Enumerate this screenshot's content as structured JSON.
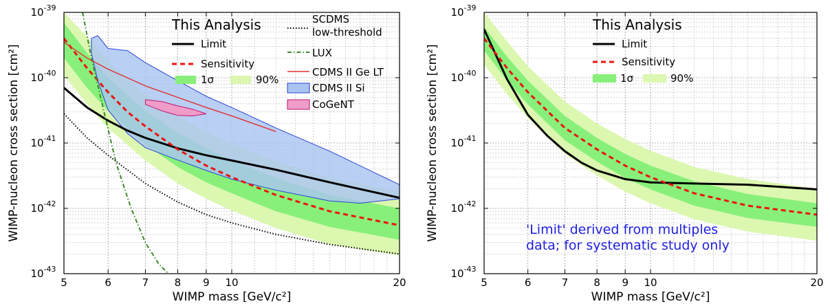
{
  "chart_data": [
    {
      "type": "line",
      "xscale": "log",
      "yscale": "log",
      "xlim": [
        5,
        20
      ],
      "ylim": [
        1e-43,
        1e-39
      ],
      "xlabel": "WIMP mass [GeV/c²]",
      "ylabel": "WIMP-nucleon cross section [cm²]",
      "grid": true,
      "x_ticks": [
        "5",
        "6",
        "7",
        "8",
        "9",
        "10",
        "20"
      ],
      "y_ticks": [
        {
          "base": "10",
          "exp": "-43"
        },
        {
          "base": "10",
          "exp": "-42"
        },
        {
          "base": "10",
          "exp": "-41"
        },
        {
          "base": "10",
          "exp": "-40"
        },
        {
          "base": "10",
          "exp": "-39"
        }
      ],
      "legend_title": "This Analysis",
      "legend": {
        "limit": "Limit",
        "sensitivity": "Sensitivity",
        "band1": "1σ",
        "band90": "90%",
        "scdms": "SCDMS\nlow-threshold",
        "lux": "LUX",
        "cdmsge": "CDMS II Ge LT",
        "cdmssi": "CDMS II Si",
        "cogent": "CoGeNT"
      },
      "colors": {
        "limit": "#000000",
        "sensitivity": "#ee1111",
        "band1": "#88f07a",
        "band90": "#dcf7b0",
        "scdms": "#000000",
        "lux": "#3a8a28",
        "cdmsge": "#e23030",
        "cdmssi_fill": "#a9c4f0",
        "cdmssi_edge": "#2a44d8",
        "cogent_fill": "#ef9cc9",
        "cogent_edge": "#c01870"
      },
      "series": [
        {
          "name": "Limit",
          "x": [
            5,
            5.5,
            6,
            6.5,
            7,
            8,
            9,
            10,
            12,
            15,
            20
          ],
          "y": [
            7e-41,
            3.5e-41,
            2.2e-41,
            1.55e-41,
            1.2e-41,
            8.3e-42,
            6.5e-42,
            5.4e-42,
            3.9e-42,
            2.5e-42,
            1.45e-42
          ]
        },
        {
          "name": "Sensitivity",
          "x": [
            5,
            5.5,
            6,
            6.5,
            7,
            8,
            9,
            10,
            12,
            15,
            20
          ],
          "y": [
            4e-40,
            1.4e-40,
            6e-41,
            3e-41,
            1.8e-41,
            8e-42,
            4.5e-42,
            3e-42,
            1.6e-42,
            9e-43,
            5.5e-43
          ]
        },
        {
          "name": "SCDMS low-threshold",
          "x": [
            5,
            5.5,
            6,
            7,
            8,
            9,
            10,
            12,
            15,
            20
          ],
          "y": [
            2.8e-41,
            1.2e-41,
            6.5e-42,
            2.4e-42,
            1.25e-42,
            8e-43,
            6e-43,
            4e-43,
            2.8e-43,
            2e-43
          ]
        },
        {
          "name": "LUX",
          "x": [
            5.4,
            5.6,
            5.9,
            6.2,
            6.6,
            7.0,
            7.4,
            7.7
          ],
          "y": [
            1e-39,
            2e-40,
            3e-41,
            5e-42,
            1e-42,
            3e-43,
            1.4e-43,
            1e-43
          ]
        },
        {
          "name": "CDMS II Ge LT",
          "x": [
            5,
            5.5,
            6,
            7,
            8,
            9,
            10,
            12
          ],
          "y": [
            3.5e-40,
            2e-40,
            1.35e-40,
            7.5e-41,
            5e-41,
            3.5e-41,
            2.6e-41,
            1.5e-41
          ]
        }
      ],
      "bands": [
        {
          "name": "1σ",
          "x": [
            5,
            5.5,
            6,
            7,
            8,
            9,
            10,
            12,
            15,
            20
          ],
          "lower": [
            2e-40,
            7e-41,
            3.1e-41,
            9.5e-42,
            4.3e-42,
            2.5e-42,
            1.7e-42,
            9e-43,
            5.2e-43,
            3.3e-43
          ],
          "upper": [
            7e-40,
            2.4e-40,
            1e-40,
            3.1e-41,
            1.45e-41,
            8.2e-42,
            5.5e-42,
            2.9e-42,
            1.6e-42,
            1e-42
          ]
        },
        {
          "name": "90%",
          "x": [
            5,
            5.5,
            6,
            7,
            8,
            9,
            10,
            12,
            15,
            20
          ],
          "lower": [
            1.1e-40,
            3.9e-41,
            1.7e-41,
            5.4e-42,
            2.4e-42,
            1.4e-42,
            9.3e-43,
            5e-43,
            2.8e-43,
            1.9e-43
          ],
          "upper": [
            1e-39,
            4.2e-40,
            1.8e-40,
            5.5e-41,
            2.6e-41,
            1.45e-41,
            9.8e-42,
            5.2e-42,
            2.9e-42,
            1.8e-42
          ]
        }
      ],
      "regions": [
        {
          "name": "CDMS II Si",
          "points": [
            [
              5.6,
              4e-40
            ],
            [
              5.75,
              4.4e-40
            ],
            [
              6,
              2.8e-40
            ],
            [
              6.5,
              2.6e-40
            ],
            [
              7,
              1.7e-40
            ],
            [
              8,
              9e-41
            ],
            [
              9,
              5.2e-41
            ],
            [
              10,
              3.5e-41
            ],
            [
              12,
              1.7e-41
            ],
            [
              15,
              7.5e-42
            ],
            [
              20,
              2.3e-42
            ],
            [
              20,
              1.4e-42
            ],
            [
              17,
              1.2e-42
            ],
            [
              15,
              1.3e-42
            ],
            [
              12,
              1.9e-42
            ],
            [
              10,
              2.8e-42
            ],
            [
              9,
              3.8e-42
            ],
            [
              8,
              5.5e-42
            ],
            [
              7,
              8.5e-42
            ],
            [
              6.5,
              1.4e-41
            ],
            [
              6,
              3.2e-41
            ],
            [
              5.75,
              9e-41
            ],
            [
              5.6,
              2.4e-40
            ]
          ]
        },
        {
          "name": "CoGeNT",
          "points": [
            [
              7.0,
              4.6e-41
            ],
            [
              7.5,
              4.3e-41
            ],
            [
              8.0,
              3.7e-41
            ],
            [
              8.5,
              3.3e-41
            ],
            [
              9.0,
              2.8e-41
            ],
            [
              8.5,
              2.6e-41
            ],
            [
              8.0,
              2.65e-41
            ],
            [
              7.5,
              3.1e-41
            ],
            [
              7.0,
              3.9e-41
            ]
          ]
        }
      ]
    },
    {
      "type": "line",
      "xscale": "log",
      "yscale": "log",
      "xlim": [
        5,
        20
      ],
      "ylim": [
        1e-43,
        1e-39
      ],
      "xlabel": "WIMP mass [GeV/c²]",
      "ylabel": "WIMP-nucleon cross section [cm²]",
      "grid": true,
      "x_ticks": [
        "5",
        "6",
        "7",
        "8",
        "9",
        "10",
        "20"
      ],
      "y_ticks": [
        {
          "base": "10",
          "exp": "-43"
        },
        {
          "base": "10",
          "exp": "-42"
        },
        {
          "base": "10",
          "exp": "-41"
        },
        {
          "base": "10",
          "exp": "-40"
        },
        {
          "base": "10",
          "exp": "-39"
        }
      ],
      "legend_title": "This Analysis",
      "legend": {
        "limit": "Limit",
        "sensitivity": "Sensitivity",
        "band1": "1σ",
        "band90": "90%"
      },
      "annotation": "'Limit' derived from multiples\ndata; for systematic study only",
      "series": [
        {
          "name": "Limit",
          "x": [
            5,
            5.5,
            6,
            6.5,
            7,
            7.5,
            8,
            9,
            10,
            12,
            15,
            20
          ],
          "y": [
            5.5e-40,
            9.5e-41,
            2.7e-41,
            1.3e-41,
            7.5e-42,
            5e-42,
            3.8e-42,
            2.8e-42,
            2.5e-42,
            2.4e-42,
            2.3e-42,
            1.95e-42
          ]
        },
        {
          "name": "Sensitivity",
          "x": [
            5,
            5.5,
            6,
            7,
            8,
            9,
            10,
            12,
            15,
            20
          ],
          "y": [
            4e-40,
            1.4e-40,
            6e-41,
            1.7e-41,
            8e-42,
            4.5e-42,
            3e-42,
            1.7e-42,
            1.1e-42,
            8e-43
          ]
        }
      ],
      "bands": [
        {
          "name": "1σ",
          "x": [
            5,
            5.5,
            6,
            7,
            8,
            9,
            10,
            12,
            15,
            20
          ],
          "lower": [
            2.6e-40,
            9e-41,
            3.9e-41,
            1.1e-41,
            5.2e-42,
            2.9e-42,
            1.95e-42,
            1.1e-42,
            7.1e-43,
            5.2e-43
          ],
          "upper": [
            6e-40,
            2.1e-40,
            9e-41,
            2.6e-41,
            1.2e-41,
            6.8e-42,
            4.5e-42,
            2.6e-42,
            1.65e-42,
            1.2e-42
          ]
        },
        {
          "name": "90%",
          "x": [
            5,
            5.5,
            6,
            7,
            8,
            9,
            10,
            12,
            15,
            20
          ],
          "lower": [
            1.6e-40,
            5.6e-41,
            2.4e-41,
            6.8e-42,
            3.2e-42,
            1.8e-42,
            1.2e-42,
            6.8e-43,
            4.4e-43,
            3.2e-43
          ],
          "upper": [
            1e-39,
            3.6e-40,
            1.5e-40,
            4.3e-41,
            2e-41,
            1.15e-41,
            7.6e-42,
            4.3e-42,
            2.8e-42,
            2e-42
          ]
        }
      ]
    }
  ]
}
